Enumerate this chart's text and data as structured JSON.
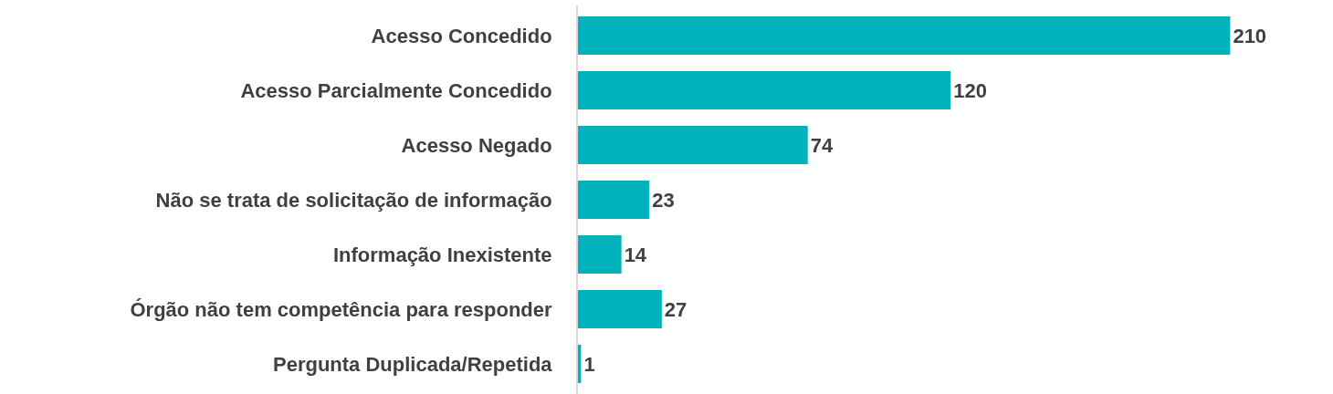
{
  "chart_data": {
    "type": "bar",
    "orientation": "horizontal",
    "categories": [
      "Acesso Concedido",
      "Acesso Parcialmente Concedido",
      "Acesso Negado",
      "Não se trata de solicitação de informação",
      "Informação Inexistente",
      "Órgão não tem competência para responder",
      "Pergunta Duplicada/Repetida"
    ],
    "values": [
      210,
      120,
      74,
      23,
      14,
      27,
      1
    ],
    "color": "#00b2bb",
    "data_labels": true
  }
}
